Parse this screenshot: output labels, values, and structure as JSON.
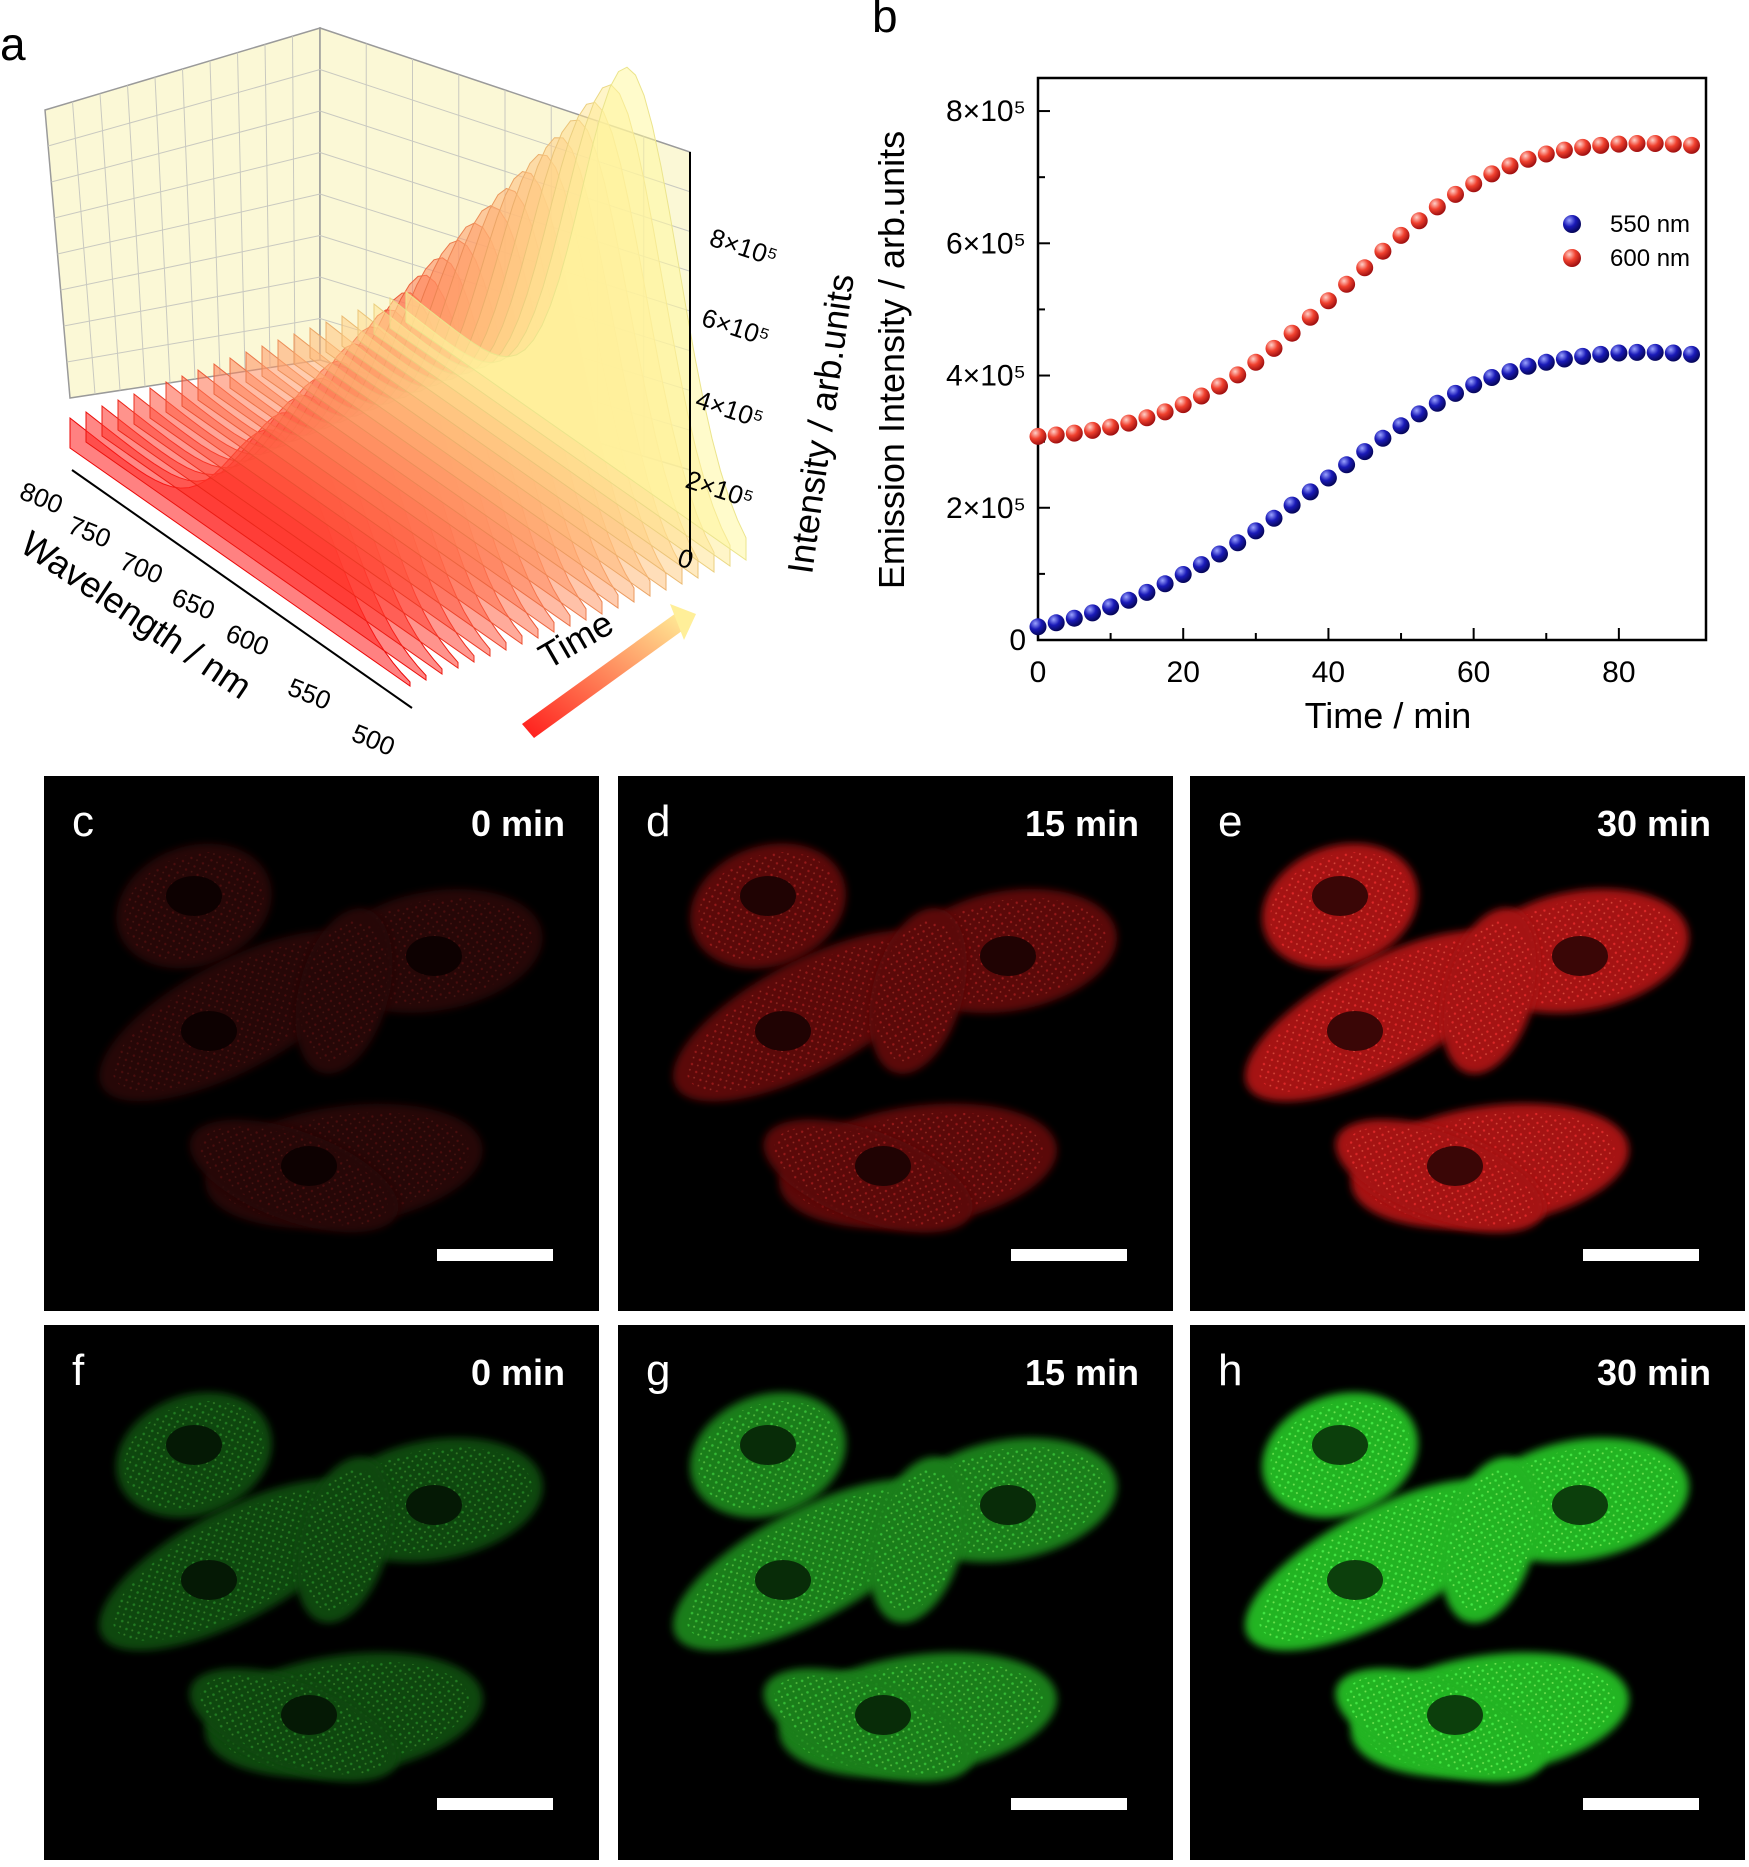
{
  "panels": {
    "a": {
      "letter": "a",
      "x_title": "Wavelength / nm",
      "z_title": "Intensity / arb.units",
      "time_label": "Time",
      "x_ticks": [
        "800",
        "750",
        "700",
        "650",
        "600",
        "550",
        "500"
      ],
      "z_ticks": [
        "0",
        "2×10⁵",
        "4×10⁵",
        "6×10⁵",
        "8×10⁵"
      ],
      "gradient_colors": {
        "start": "#ff1a1a",
        "end": "#ffff99"
      }
    },
    "b": {
      "letter": "b"
    },
    "micrographs": [
      {
        "letter": "c",
        "time": "0 min",
        "channel": "red",
        "level": 0.35
      },
      {
        "letter": "d",
        "time": "15 min",
        "channel": "red",
        "level": 0.65
      },
      {
        "letter": "e",
        "time": "30 min",
        "channel": "red",
        "level": 0.95
      },
      {
        "letter": "f",
        "time": "0 min",
        "channel": "green",
        "level": 0.55
      },
      {
        "letter": "g",
        "time": "15 min",
        "channel": "green",
        "level": 0.8
      },
      {
        "letter": "h",
        "time": "30 min",
        "channel": "green",
        "level": 1.0
      }
    ]
  },
  "chart_data": {
    "type": "scatter",
    "xlabel": "Time / min",
    "ylabel": "Emission Intensity / arb.units",
    "xlim": [
      0,
      92
    ],
    "ylim": [
      0,
      850000
    ],
    "x_ticks": [
      0,
      20,
      40,
      60,
      80
    ],
    "y_ticks": [
      0,
      200000,
      400000,
      600000,
      800000
    ],
    "y_tick_labels": [
      "0",
      "2×10⁵",
      "4×10⁵",
      "6×10⁵",
      "8×10⁵"
    ],
    "x_tick_labels": [
      "0",
      "20",
      "40",
      "60",
      "80"
    ],
    "legend_position": "right",
    "grid": false,
    "series": [
      {
        "name": "550 nm",
        "color": "#1a1aa8",
        "x": [
          0,
          2.5,
          5,
          7.5,
          10,
          12.5,
          15,
          17.5,
          20,
          22.5,
          25,
          27.5,
          30,
          32.5,
          35,
          37.5,
          40,
          42.5,
          45,
          47.5,
          50,
          52.5,
          55,
          57.5,
          60,
          62.5,
          65,
          67.5,
          70,
          72.5,
          75,
          77.5,
          80,
          82.5,
          85,
          87.5,
          90
        ],
        "values": [
          20000,
          26000,
          33000,
          41000,
          50000,
          60000,
          72000,
          85000,
          99000,
          114000,
          130000,
          147000,
          165000,
          184000,
          204000,
          224000,
          245000,
          265000,
          285000,
          305000,
          324000,
          342000,
          358000,
          373000,
          386000,
          397000,
          406000,
          414000,
          420000,
          425000,
          429000,
          432000,
          434000,
          435000,
          435000,
          434000,
          432000
        ]
      },
      {
        "name": "600 nm",
        "color": "#e8312a",
        "x": [
          0,
          2.5,
          5,
          7.5,
          10,
          12.5,
          15,
          17.5,
          20,
          22.5,
          25,
          27.5,
          30,
          32.5,
          35,
          37.5,
          40,
          42.5,
          45,
          47.5,
          50,
          52.5,
          55,
          57.5,
          60,
          62.5,
          65,
          67.5,
          70,
          72.5,
          75,
          77.5,
          80,
          82.5,
          85,
          87.5,
          90
        ],
        "values": [
          308000,
          310000,
          313000,
          317000,
          322000,
          328000,
          336000,
          345000,
          356000,
          369000,
          384000,
          401000,
          420000,
          441000,
          464000,
          488000,
          513000,
          538000,
          563000,
          588000,
          612000,
          634000,
          655000,
          674000,
          690000,
          705000,
          717000,
          727000,
          735000,
          741000,
          745000,
          748000,
          750000,
          751000,
          751000,
          750000,
          748000
        ]
      }
    ]
  }
}
